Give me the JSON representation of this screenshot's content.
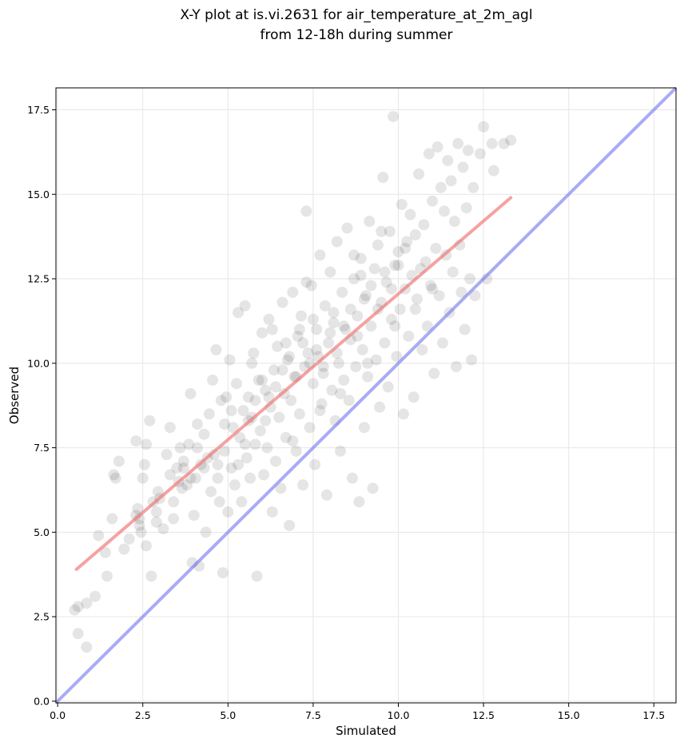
{
  "chart_data": {
    "type": "scatter",
    "title_lines": [
      "X-Y plot at is.vi.2631 for air_temperature_at_2m_agl",
      "from 12-18h during summer"
    ],
    "xlabel": "Simulated",
    "ylabel": "Observed",
    "xlim": [
      -0.05,
      18.15
    ],
    "ylim": [
      -0.05,
      18.15
    ],
    "xticks": [
      0.0,
      2.5,
      5.0,
      7.5,
      10.0,
      12.5,
      15.0,
      17.5
    ],
    "yticks": [
      0.0,
      2.5,
      5.0,
      7.5,
      10.0,
      12.5,
      15.0,
      17.5
    ],
    "xtick_labels": [
      "0.0",
      "2.5",
      "5.0",
      "7.5",
      "10.0",
      "12.5",
      "15.0",
      "17.5"
    ],
    "ytick_labels": [
      "0.0",
      "2.5",
      "5.0",
      "7.5",
      "10.0",
      "12.5",
      "15.0",
      "17.5"
    ],
    "grid": true,
    "colors": {
      "points": "#000000",
      "fit_line": "#f07070",
      "identity_line": "#7d7df0",
      "grid": "#e6e6e6"
    },
    "fit_line": {
      "x": [
        0.55,
        13.3
      ],
      "y": [
        3.9,
        14.9
      ]
    },
    "identity_line": {
      "x": [
        -0.05,
        18.15
      ],
      "y": [
        -0.05,
        18.15
      ]
    },
    "points": [
      [
        0.5,
        2.7
      ],
      [
        0.6,
        2.8
      ],
      [
        0.6,
        2.0
      ],
      [
        0.85,
        2.9
      ],
      [
        0.85,
        1.6
      ],
      [
        1.1,
        3.1
      ],
      [
        1.2,
        4.9
      ],
      [
        1.4,
        4.4
      ],
      [
        1.45,
        3.7
      ],
      [
        1.6,
        5.4
      ],
      [
        1.65,
        6.7
      ],
      [
        1.7,
        6.6
      ],
      [
        1.8,
        7.1
      ],
      [
        1.95,
        4.5
      ],
      [
        2.1,
        4.8
      ],
      [
        2.3,
        7.7
      ],
      [
        2.35,
        5.7
      ],
      [
        2.4,
        5.4
      ],
      [
        2.45,
        5.0
      ],
      [
        2.5,
        6.6
      ],
      [
        2.55,
        7.0
      ],
      [
        2.6,
        7.6
      ],
      [
        2.6,
        4.6
      ],
      [
        2.7,
        8.3
      ],
      [
        2.75,
        3.7
      ],
      [
        2.8,
        5.9
      ],
      [
        2.9,
        5.6
      ],
      [
        2.95,
        6.2
      ],
      [
        3.1,
        5.1
      ],
      [
        3.2,
        7.3
      ],
      [
        3.3,
        8.1
      ],
      [
        3.4,
        5.4
      ],
      [
        3.5,
        6.9
      ],
      [
        3.55,
        6.5
      ],
      [
        3.6,
        7.5
      ],
      [
        3.65,
        6.3
      ],
      [
        3.7,
        6.9
      ],
      [
        3.8,
        6.4
      ],
      [
        3.85,
        7.6
      ],
      [
        3.9,
        9.1
      ],
      [
        3.95,
        4.1
      ],
      [
        4.0,
        5.5
      ],
      [
        4.05,
        6.6
      ],
      [
        4.1,
        8.2
      ],
      [
        4.15,
        4.0
      ],
      [
        4.2,
        7.0
      ],
      [
        4.3,
        7.9
      ],
      [
        4.35,
        5.0
      ],
      [
        4.4,
        7.2
      ],
      [
        4.45,
        8.5
      ],
      [
        4.5,
        6.2
      ],
      [
        4.55,
        9.5
      ],
      [
        4.6,
        7.3
      ],
      [
        4.65,
        10.4
      ],
      [
        4.7,
        6.6
      ],
      [
        4.75,
        5.9
      ],
      [
        4.8,
        8.9
      ],
      [
        4.85,
        3.8
      ],
      [
        4.9,
        7.4
      ],
      [
        4.95,
        9.0
      ],
      [
        5.0,
        5.6
      ],
      [
        5.05,
        10.1
      ],
      [
        5.1,
        6.9
      ],
      [
        5.15,
        8.1
      ],
      [
        5.2,
        6.4
      ],
      [
        5.25,
        9.4
      ],
      [
        5.3,
        11.5
      ],
      [
        5.35,
        7.8
      ],
      [
        5.4,
        5.9
      ],
      [
        5.45,
        8.6
      ],
      [
        5.5,
        11.7
      ],
      [
        5.55,
        7.2
      ],
      [
        5.6,
        9.0
      ],
      [
        5.65,
        6.6
      ],
      [
        5.7,
        8.4
      ],
      [
        5.75,
        10.3
      ],
      [
        5.8,
        7.6
      ],
      [
        5.85,
        3.7
      ],
      [
        5.9,
        9.5
      ],
      [
        5.95,
        8.0
      ],
      [
        6.0,
        10.9
      ],
      [
        6.05,
        6.7
      ],
      [
        6.1,
        9.2
      ],
      [
        6.15,
        7.5
      ],
      [
        6.2,
        11.3
      ],
      [
        6.25,
        8.7
      ],
      [
        6.3,
        5.6
      ],
      [
        6.35,
        9.8
      ],
      [
        6.4,
        7.1
      ],
      [
        6.45,
        10.5
      ],
      [
        6.5,
        8.4
      ],
      [
        6.55,
        6.3
      ],
      [
        6.6,
        11.8
      ],
      [
        6.65,
        9.1
      ],
      [
        6.7,
        7.8
      ],
      [
        6.75,
        10.1
      ],
      [
        6.8,
        5.2
      ],
      [
        6.85,
        8.9
      ],
      [
        6.9,
        12.1
      ],
      [
        6.95,
        9.6
      ],
      [
        7.0,
        7.4
      ],
      [
        7.05,
        10.8
      ],
      [
        7.1,
        8.5
      ],
      [
        7.15,
        11.4
      ],
      [
        7.2,
        6.4
      ],
      [
        7.25,
        9.9
      ],
      [
        7.3,
        14.5
      ],
      [
        7.35,
        10.3
      ],
      [
        7.4,
        8.1
      ],
      [
        7.45,
        12.3
      ],
      [
        7.5,
        9.4
      ],
      [
        7.55,
        7.0
      ],
      [
        7.6,
        11.0
      ],
      [
        7.65,
        10.2
      ],
      [
        7.7,
        13.2
      ],
      [
        7.75,
        8.8
      ],
      [
        7.8,
        9.7
      ],
      [
        7.85,
        11.7
      ],
      [
        7.9,
        6.1
      ],
      [
        7.95,
        10.6
      ],
      [
        8.0,
        12.7
      ],
      [
        8.05,
        9.2
      ],
      [
        8.1,
        11.2
      ],
      [
        8.15,
        8.3
      ],
      [
        8.2,
        13.6
      ],
      [
        8.25,
        10.0
      ],
      [
        8.3,
        7.4
      ],
      [
        8.35,
        12.1
      ],
      [
        8.4,
        9.5
      ],
      [
        8.45,
        11.0
      ],
      [
        8.5,
        14.0
      ],
      [
        8.55,
        8.9
      ],
      [
        8.6,
        10.7
      ],
      [
        8.65,
        6.6
      ],
      [
        8.7,
        12.5
      ],
      [
        8.75,
        9.9
      ],
      [
        8.8,
        11.4
      ],
      [
        8.85,
        5.9
      ],
      [
        8.9,
        13.1
      ],
      [
        8.95,
        10.4
      ],
      [
        9.0,
        8.1
      ],
      [
        9.05,
        12.0
      ],
      [
        9.1,
        9.6
      ],
      [
        9.15,
        14.2
      ],
      [
        9.2,
        11.1
      ],
      [
        9.25,
        6.3
      ],
      [
        9.3,
        12.8
      ],
      [
        9.35,
        10.1
      ],
      [
        9.4,
        13.5
      ],
      [
        9.45,
        8.7
      ],
      [
        9.5,
        11.8
      ],
      [
        9.55,
        15.5
      ],
      [
        9.6,
        10.6
      ],
      [
        9.65,
        12.4
      ],
      [
        9.7,
        9.3
      ],
      [
        9.75,
        13.9
      ],
      [
        9.8,
        11.3
      ],
      [
        9.85,
        17.3
      ],
      [
        9.9,
        12.9
      ],
      [
        9.95,
        10.2
      ],
      [
        10.0,
        13.3
      ],
      [
        10.05,
        11.6
      ],
      [
        10.1,
        14.7
      ],
      [
        10.15,
        8.5
      ],
      [
        10.2,
        12.2
      ],
      [
        10.25,
        13.6
      ],
      [
        10.3,
        10.8
      ],
      [
        10.35,
        14.4
      ],
      [
        10.4,
        12.6
      ],
      [
        10.45,
        9.0
      ],
      [
        10.5,
        13.8
      ],
      [
        10.55,
        11.9
      ],
      [
        10.6,
        15.6
      ],
      [
        10.65,
        12.8
      ],
      [
        10.7,
        10.4
      ],
      [
        10.75,
        14.1
      ],
      [
        10.8,
        13.0
      ],
      [
        10.85,
        11.1
      ],
      [
        10.9,
        16.2
      ],
      [
        10.95,
        12.3
      ],
      [
        11.0,
        14.8
      ],
      [
        11.05,
        9.7
      ],
      [
        11.1,
        13.4
      ],
      [
        11.15,
        16.4
      ],
      [
        11.2,
        12.0
      ],
      [
        11.25,
        15.2
      ],
      [
        11.3,
        10.6
      ],
      [
        11.35,
        14.5
      ],
      [
        11.4,
        13.2
      ],
      [
        11.45,
        16.0
      ],
      [
        11.5,
        11.5
      ],
      [
        11.55,
        15.4
      ],
      [
        11.6,
        12.7
      ],
      [
        11.65,
        14.2
      ],
      [
        11.7,
        9.9
      ],
      [
        11.75,
        16.5
      ],
      [
        11.8,
        13.5
      ],
      [
        11.85,
        12.1
      ],
      [
        11.9,
        15.8
      ],
      [
        11.95,
        11.0
      ],
      [
        12.0,
        14.6
      ],
      [
        12.05,
        16.3
      ],
      [
        12.1,
        12.5
      ],
      [
        12.15,
        10.1
      ],
      [
        12.2,
        15.2
      ],
      [
        12.25,
        12.0
      ],
      [
        12.4,
        16.2
      ],
      [
        12.5,
        17.0
      ],
      [
        12.6,
        12.5
      ],
      [
        12.75,
        16.5
      ],
      [
        12.8,
        15.7
      ],
      [
        13.1,
        16.5
      ],
      [
        13.3,
        16.6
      ],
      [
        2.3,
        5.5
      ],
      [
        2.4,
        5.2
      ],
      [
        3.0,
        6.0
      ],
      [
        3.3,
        6.7
      ],
      [
        3.7,
        7.1
      ],
      [
        4.1,
        7.5
      ],
      [
        4.3,
        6.9
      ],
      [
        4.9,
        8.2
      ],
      [
        5.1,
        8.6
      ],
      [
        5.3,
        7.0
      ],
      [
        5.6,
        8.3
      ],
      [
        5.8,
        8.9
      ],
      [
        6.0,
        9.5
      ],
      [
        6.2,
        9.0
      ],
      [
        6.4,
        9.3
      ],
      [
        6.6,
        9.8
      ],
      [
        6.8,
        10.2
      ],
      [
        7.0,
        9.6
      ],
      [
        7.2,
        10.6
      ],
      [
        7.4,
        10.0
      ],
      [
        7.6,
        10.4
      ],
      [
        7.8,
        9.9
      ],
      [
        8.0,
        10.9
      ],
      [
        8.2,
        10.3
      ],
      [
        8.4,
        11.1
      ],
      [
        8.6,
        11.6
      ],
      [
        8.8,
        10.8
      ],
      [
        9.0,
        11.9
      ],
      [
        9.2,
        12.3
      ],
      [
        9.4,
        11.6
      ],
      [
        9.6,
        12.7
      ],
      [
        9.8,
        12.2
      ],
      [
        10.0,
        12.9
      ],
      [
        10.2,
        13.4
      ],
      [
        7.1,
        11.0
      ],
      [
        7.5,
        11.3
      ],
      [
        8.1,
        11.5
      ],
      [
        8.9,
        12.6
      ],
      [
        6.7,
        10.6
      ],
      [
        6.1,
        8.3
      ],
      [
        5.5,
        7.6
      ],
      [
        4.7,
        7.0
      ],
      [
        3.9,
        6.6
      ],
      [
        3.4,
        5.9
      ],
      [
        2.9,
        5.3
      ],
      [
        6.9,
        7.7
      ],
      [
        7.7,
        8.6
      ],
      [
        8.3,
        9.1
      ],
      [
        9.1,
        10.0
      ],
      [
        9.9,
        11.1
      ],
      [
        10.5,
        11.6
      ],
      [
        11.0,
        12.2
      ],
      [
        7.3,
        12.4
      ],
      [
        6.3,
        11.0
      ],
      [
        5.7,
        10.0
      ],
      [
        8.7,
        13.2
      ],
      [
        9.5,
        13.9
      ]
    ]
  }
}
